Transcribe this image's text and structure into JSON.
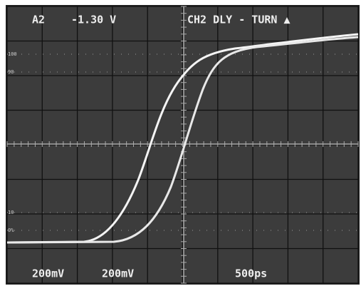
{
  "header": {
    "channel": "A2",
    "level": "-1.30 V",
    "trigger": "CH2 DLY - TURN ▲"
  },
  "footer": {
    "ch1_scale": "200mV",
    "ch2_scale": "200mV",
    "timebase": "500ps"
  },
  "graticule_labels": [
    "100",
    "90",
    "10",
    "0%"
  ]
}
